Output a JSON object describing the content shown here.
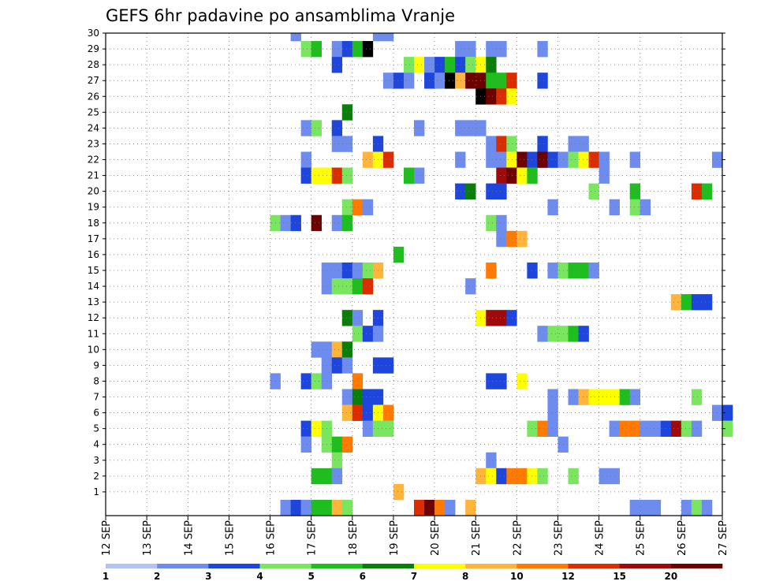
{
  "chart_data": {
    "type": "heatmap",
    "title": "GEFS 6hr padavine po ansamblima Vranje",
    "xlabel": "",
    "ylabel": "",
    "x_tick_labels": [
      "12 SEP",
      "13 SEP",
      "14 SEP",
      "15 SEP",
      "16 SEP",
      "17 SEP",
      "18 SEP",
      "19 SEP",
      "20 SEP",
      "21 SEP",
      "22 SEP",
      "23 SEP",
      "24 SEP",
      "25 SEP",
      "26 SEP",
      "27 SEP"
    ],
    "y_tick_labels": [
      "1",
      "2",
      "3",
      "4",
      "5",
      "6",
      "7",
      "8",
      "9",
      "10",
      "11",
      "12",
      "13",
      "14",
      "15",
      "16",
      "17",
      "18",
      "19",
      "20",
      "21",
      "22",
      "23",
      "24",
      "25",
      "26",
      "27",
      "28",
      "29",
      "30"
    ],
    "x_unit": "6-hour step from 12 SEP 00Z",
    "x_range_steps": [
      0,
      60
    ],
    "y_range_members": [
      0,
      30
    ],
    "grid": true,
    "legend_position": "bottom",
    "legend_labels": [
      "1",
      "2",
      "3",
      "4",
      "5",
      "6",
      "7",
      "8",
      "10",
      "12",
      "15",
      "20"
    ],
    "legend_colors": [
      "#b4c3f5",
      "#6e8cee",
      "#1e46dc",
      "#7ae65f",
      "#1ebe1e",
      "#0a7d0a",
      "#ffff00",
      "#ffb43c",
      "#ff7a00",
      "#dc2d00",
      "#a00a0a",
      "#6e0000"
    ],
    "cells": [
      [
        18,
        30,
        1
      ],
      [
        26,
        30,
        1
      ],
      [
        27,
        30,
        1
      ],
      [
        19,
        29,
        3
      ],
      [
        20,
        29,
        4
      ],
      [
        22,
        29,
        1
      ],
      [
        23,
        29,
        2
      ],
      [
        24,
        29,
        4
      ],
      [
        25,
        29,
        12
      ],
      [
        34,
        29,
        1
      ],
      [
        35,
        29,
        1
      ],
      [
        37,
        29,
        1
      ],
      [
        38,
        29,
        1
      ],
      [
        42,
        29,
        1
      ],
      [
        22,
        28,
        2
      ],
      [
        29,
        28,
        3
      ],
      [
        30,
        28,
        6
      ],
      [
        31,
        28,
        1
      ],
      [
        32,
        28,
        2
      ],
      [
        33,
        28,
        4
      ],
      [
        34,
        28,
        2
      ],
      [
        35,
        28,
        3
      ],
      [
        36,
        28,
        6
      ],
      [
        37,
        28,
        5
      ],
      [
        27,
        27,
        1
      ],
      [
        28,
        27,
        2
      ],
      [
        29,
        27,
        1
      ],
      [
        31,
        27,
        2
      ],
      [
        32,
        27,
        1
      ],
      [
        33,
        27,
        12
      ],
      [
        34,
        27,
        7
      ],
      [
        35,
        27,
        11
      ],
      [
        36,
        27,
        11
      ],
      [
        37,
        27,
        4
      ],
      [
        38,
        27,
        4
      ],
      [
        39,
        27,
        9
      ],
      [
        42,
        27,
        2
      ],
      [
        36,
        26,
        12
      ],
      [
        37,
        26,
        11
      ],
      [
        38,
        26,
        9
      ],
      [
        39,
        26,
        6
      ],
      [
        23,
        25,
        5
      ],
      [
        19,
        24,
        1
      ],
      [
        20,
        24,
        3
      ],
      [
        22,
        24,
        2
      ],
      [
        30,
        24,
        1
      ],
      [
        34,
        24,
        1
      ],
      [
        35,
        24,
        1
      ],
      [
        36,
        24,
        1
      ],
      [
        22,
        23,
        1
      ],
      [
        23,
        23,
        1
      ],
      [
        26,
        23,
        2
      ],
      [
        37,
        23,
        1
      ],
      [
        38,
        23,
        9
      ],
      [
        39,
        23,
        3
      ],
      [
        42,
        23,
        2
      ],
      [
        45,
        23,
        1
      ],
      [
        46,
        23,
        1
      ],
      [
        19,
        22,
        1
      ],
      [
        25,
        22,
        7
      ],
      [
        26,
        22,
        6
      ],
      [
        27,
        22,
        9
      ],
      [
        34,
        22,
        1
      ],
      [
        37,
        22,
        1
      ],
      [
        38,
        22,
        1
      ],
      [
        39,
        22,
        6
      ],
      [
        40,
        22,
        11
      ],
      [
        41,
        22,
        2
      ],
      [
        42,
        22,
        11
      ],
      [
        43,
        22,
        2
      ],
      [
        44,
        22,
        1
      ],
      [
        45,
        22,
        3
      ],
      [
        46,
        22,
        6
      ],
      [
        47,
        22,
        9
      ],
      [
        48,
        22,
        1
      ],
      [
        51,
        22,
        1
      ],
      [
        59,
        22,
        1
      ],
      [
        19,
        21,
        2
      ],
      [
        20,
        21,
        6
      ],
      [
        21,
        21,
        6
      ],
      [
        22,
        21,
        9
      ],
      [
        23,
        21,
        3
      ],
      [
        29,
        21,
        4
      ],
      [
        30,
        21,
        1
      ],
      [
        38,
        21,
        10
      ],
      [
        39,
        21,
        11
      ],
      [
        40,
        21,
        6
      ],
      [
        41,
        21,
        4
      ],
      [
        48,
        21,
        1
      ],
      [
        34,
        20,
        2
      ],
      [
        35,
        20,
        5
      ],
      [
        37,
        20,
        2
      ],
      [
        38,
        20,
        2
      ],
      [
        47,
        20,
        3
      ],
      [
        51,
        20,
        4
      ],
      [
        57,
        20,
        9
      ],
      [
        58,
        20,
        4
      ],
      [
        23,
        19,
        3
      ],
      [
        24,
        19,
        8
      ],
      [
        25,
        19,
        1
      ],
      [
        43,
        19,
        1
      ],
      [
        49,
        19,
        1
      ],
      [
        51,
        19,
        3
      ],
      [
        52,
        19,
        1
      ],
      [
        16,
        18,
        3
      ],
      [
        17,
        18,
        1
      ],
      [
        18,
        18,
        2
      ],
      [
        20,
        18,
        11
      ],
      [
        22,
        18,
        1
      ],
      [
        23,
        18,
        4
      ],
      [
        37,
        18,
        3
      ],
      [
        38,
        18,
        1
      ],
      [
        38,
        17,
        1
      ],
      [
        39,
        17,
        8
      ],
      [
        40,
        17,
        7
      ],
      [
        28,
        16,
        4
      ],
      [
        21,
        15,
        1
      ],
      [
        22,
        15,
        1
      ],
      [
        23,
        15,
        2
      ],
      [
        24,
        15,
        1
      ],
      [
        25,
        15,
        3
      ],
      [
        26,
        15,
        7
      ],
      [
        37,
        15,
        8
      ],
      [
        41,
        15,
        2
      ],
      [
        43,
        15,
        1
      ],
      [
        44,
        15,
        3
      ],
      [
        45,
        15,
        4
      ],
      [
        46,
        15,
        4
      ],
      [
        47,
        15,
        1
      ],
      [
        21,
        14,
        1
      ],
      [
        22,
        14,
        3
      ],
      [
        23,
        14,
        3
      ],
      [
        24,
        14,
        4
      ],
      [
        25,
        14,
        9
      ],
      [
        35,
        14,
        1
      ],
      [
        55,
        13,
        7
      ],
      [
        56,
        13,
        4
      ],
      [
        57,
        13,
        2
      ],
      [
        58,
        13,
        2
      ],
      [
        23,
        12,
        5
      ],
      [
        24,
        12,
        1
      ],
      [
        26,
        12,
        2
      ],
      [
        36,
        12,
        6
      ],
      [
        37,
        12,
        10
      ],
      [
        38,
        12,
        10
      ],
      [
        39,
        12,
        2
      ],
      [
        24,
        11,
        3
      ],
      [
        25,
        11,
        2
      ],
      [
        26,
        11,
        1
      ],
      [
        42,
        11,
        1
      ],
      [
        43,
        11,
        3
      ],
      [
        44,
        11,
        3
      ],
      [
        45,
        11,
        4
      ],
      [
        46,
        11,
        2
      ],
      [
        20,
        10,
        1
      ],
      [
        21,
        10,
        1
      ],
      [
        22,
        10,
        7
      ],
      [
        23,
        10,
        5
      ],
      [
        21,
        9,
        1
      ],
      [
        22,
        9,
        2
      ],
      [
        23,
        9,
        1
      ],
      [
        26,
        9,
        2
      ],
      [
        27,
        9,
        2
      ],
      [
        16,
        8,
        1
      ],
      [
        19,
        8,
        2
      ],
      [
        20,
        8,
        3
      ],
      [
        21,
        8,
        1
      ],
      [
        24,
        8,
        8
      ],
      [
        37,
        8,
        2
      ],
      [
        38,
        8,
        2
      ],
      [
        40,
        8,
        6
      ],
      [
        23,
        7,
        1
      ],
      [
        24,
        7,
        5
      ],
      [
        25,
        7,
        2
      ],
      [
        26,
        7,
        2
      ],
      [
        43,
        7,
        1
      ],
      [
        45,
        7,
        1
      ],
      [
        46,
        7,
        7
      ],
      [
        47,
        7,
        6
      ],
      [
        48,
        7,
        6
      ],
      [
        49,
        7,
        6
      ],
      [
        50,
        7,
        4
      ],
      [
        51,
        7,
        1
      ],
      [
        57,
        7,
        3
      ],
      [
        23,
        6,
        7
      ],
      [
        24,
        6,
        9
      ],
      [
        25,
        6,
        2
      ],
      [
        26,
        6,
        6
      ],
      [
        27,
        6,
        8
      ],
      [
        43,
        6,
        1
      ],
      [
        59,
        6,
        1
      ],
      [
        60,
        6,
        2
      ],
      [
        19,
        5,
        2
      ],
      [
        20,
        5,
        6
      ],
      [
        21,
        5,
        3
      ],
      [
        25,
        5,
        1
      ],
      [
        26,
        5,
        3
      ],
      [
        27,
        5,
        3
      ],
      [
        41,
        5,
        3
      ],
      [
        42,
        5,
        8
      ],
      [
        43,
        5,
        1
      ],
      [
        49,
        5,
        1
      ],
      [
        50,
        5,
        8
      ],
      [
        51,
        5,
        8
      ],
      [
        52,
        5,
        1
      ],
      [
        53,
        5,
        1
      ],
      [
        54,
        5,
        2
      ],
      [
        55,
        5,
        10
      ],
      [
        56,
        5,
        3
      ],
      [
        57,
        5,
        1
      ],
      [
        60,
        5,
        3
      ],
      [
        19,
        4,
        1
      ],
      [
        21,
        4,
        3
      ],
      [
        22,
        4,
        4
      ],
      [
        23,
        4,
        8
      ],
      [
        44,
        4,
        1
      ],
      [
        22,
        3,
        3
      ],
      [
        37,
        3,
        1
      ],
      [
        20,
        2,
        4
      ],
      [
        21,
        2,
        4
      ],
      [
        22,
        2,
        1
      ],
      [
        36,
        2,
        7
      ],
      [
        37,
        2,
        6
      ],
      [
        38,
        2,
        2
      ],
      [
        39,
        2,
        8
      ],
      [
        40,
        2,
        8
      ],
      [
        41,
        2,
        6
      ],
      [
        42,
        2,
        3
      ],
      [
        45,
        2,
        3
      ],
      [
        48,
        2,
        1
      ],
      [
        49,
        2,
        1
      ],
      [
        28,
        1,
        7
      ],
      [
        17,
        0,
        1
      ],
      [
        18,
        0,
        2
      ],
      [
        19,
        0,
        1
      ],
      [
        20,
        0,
        4
      ],
      [
        21,
        0,
        4
      ],
      [
        22,
        0,
        7
      ],
      [
        23,
        0,
        3
      ],
      [
        30,
        0,
        9
      ],
      [
        31,
        0,
        11
      ],
      [
        32,
        0,
        8
      ],
      [
        33,
        0,
        1
      ],
      [
        35,
        0,
        7
      ],
      [
        51,
        0,
        1
      ],
      [
        52,
        0,
        1
      ],
      [
        53,
        0,
        1
      ],
      [
        56,
        0,
        1
      ],
      [
        57,
        0,
        3
      ],
      [
        58,
        0,
        1
      ]
    ]
  }
}
